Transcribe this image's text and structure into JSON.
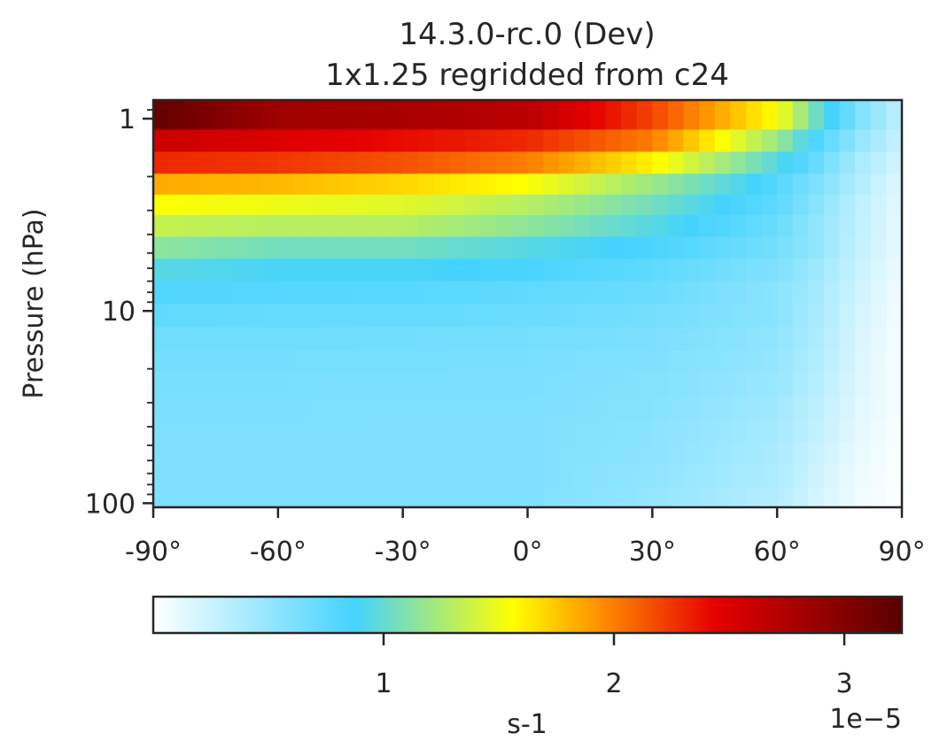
{
  "chart_data": {
    "type": "heatmap",
    "title": "14.3.0-rc.0 (Dev)",
    "subtitle": "1x1.25 regridded from c24",
    "xlabel": "",
    "ylabel": "Pressure (hPa)",
    "xlim": [
      -90,
      90
    ],
    "ylim": [
      105,
      0.8
    ],
    "yscale": "log",
    "x_ticks": [
      -90,
      -60,
      -30,
      0,
      30,
      60,
      90
    ],
    "x_tick_labels": [
      "-90°",
      "-60°",
      "-30°",
      "0°",
      "30°",
      "60°",
      "90°"
    ],
    "y_ticks": [
      1,
      10,
      100
    ],
    "y_tick_labels": [
      "1",
      "10",
      "100"
    ],
    "colormap": "white-blue-green-yellow-red-darkred",
    "colormap_stops": [
      {
        "pos": 0.0,
        "color": "#ffffff"
      },
      {
        "pos": 0.27,
        "color": "#44d3fe"
      },
      {
        "pos": 0.48,
        "color": "#ffff00"
      },
      {
        "pos": 0.6,
        "color": "#ff8c00"
      },
      {
        "pos": 0.75,
        "color": "#e60000"
      },
      {
        "pos": 1.0,
        "color": "#5a0000"
      }
    ],
    "colorbar": {
      "label": "s-1",
      "vmin": 0,
      "vmax": 3.25,
      "ticks": [
        1,
        2,
        3
      ],
      "tick_labels": [
        "1",
        "2",
        "3"
      ],
      "offset_text": "1e−5"
    },
    "levels_hpa": [
      1.0,
      1.3,
      1.7,
      2.2,
      2.8,
      3.6,
      4.7,
      6.1,
      8.0,
      10.5,
      14,
      18,
      24,
      32,
      42,
      55,
      72,
      95
    ],
    "profiles_lat": [
      -90,
      -60,
      -30,
      0,
      30,
      60,
      70,
      80,
      90
    ],
    "values_1e-5": [
      [
        3.2,
        2.85,
        2.8,
        2.7,
        2.2,
        1.55,
        1.0,
        0.6,
        0.3
      ],
      [
        2.6,
        2.5,
        2.4,
        2.3,
        2.0,
        1.2,
        0.8,
        0.5,
        0.25
      ],
      [
        2.3,
        2.25,
        2.15,
        2.0,
        1.6,
        0.95,
        0.7,
        0.4,
        0.2
      ],
      [
        1.85,
        1.8,
        1.7,
        1.55,
        1.2,
        0.8,
        0.6,
        0.35,
        0.15
      ],
      [
        1.55,
        1.5,
        1.45,
        1.3,
        1.05,
        0.75,
        0.55,
        0.3,
        0.12
      ],
      [
        1.35,
        1.3,
        1.3,
        1.15,
        0.95,
        0.7,
        0.5,
        0.3,
        0.1
      ],
      [
        1.15,
        1.05,
        1.05,
        0.95,
        0.85,
        0.65,
        0.5,
        0.28,
        0.1
      ],
      [
        0.95,
        0.9,
        0.9,
        0.85,
        0.75,
        0.6,
        0.45,
        0.25,
        0.08
      ],
      [
        0.82,
        0.8,
        0.78,
        0.75,
        0.7,
        0.55,
        0.42,
        0.22,
        0.06
      ],
      [
        0.75,
        0.72,
        0.72,
        0.7,
        0.65,
        0.55,
        0.4,
        0.2,
        0.05
      ],
      [
        0.68,
        0.68,
        0.66,
        0.65,
        0.62,
        0.52,
        0.38,
        0.18,
        0.04
      ],
      [
        0.65,
        0.65,
        0.64,
        0.63,
        0.6,
        0.5,
        0.36,
        0.17,
        0.03
      ],
      [
        0.63,
        0.63,
        0.62,
        0.62,
        0.58,
        0.48,
        0.34,
        0.16,
        0.03
      ],
      [
        0.62,
        0.62,
        0.61,
        0.61,
        0.57,
        0.45,
        0.3,
        0.14,
        0.03
      ],
      [
        0.61,
        0.61,
        0.6,
        0.6,
        0.55,
        0.42,
        0.28,
        0.12,
        0.02
      ],
      [
        0.6,
        0.6,
        0.6,
        0.6,
        0.54,
        0.4,
        0.25,
        0.1,
        0.02
      ],
      [
        0.6,
        0.6,
        0.6,
        0.6,
        0.52,
        0.38,
        0.22,
        0.08,
        0.02
      ],
      [
        0.6,
        0.6,
        0.6,
        0.6,
        0.5,
        0.35,
        0.2,
        0.06,
        0.01
      ]
    ]
  }
}
